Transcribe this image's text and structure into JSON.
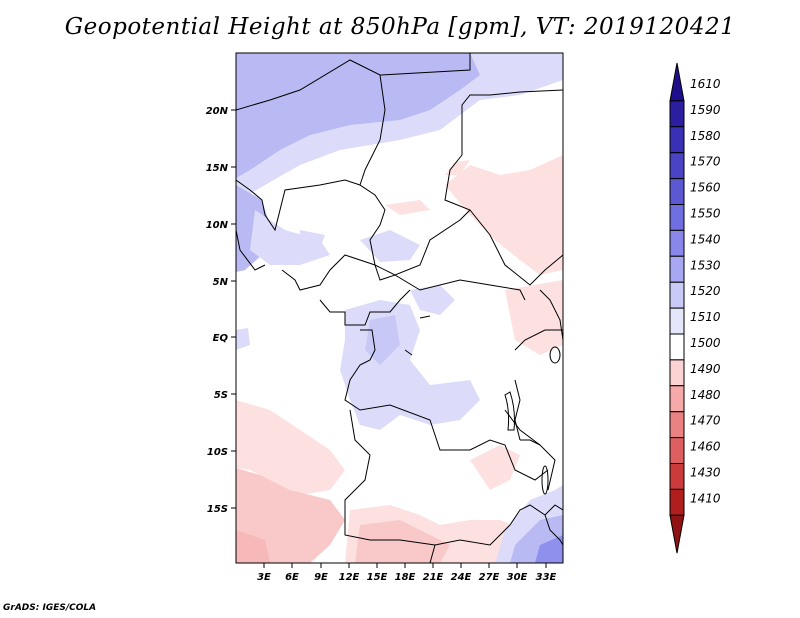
{
  "title": "Geopotential Height at 850hPa [gpm], VT: 2019120421",
  "credit": "GrADS: IGES/COLA",
  "map": {
    "region": "Central Africa",
    "lat_labels": [
      "20N",
      "15N",
      "10N",
      "5N",
      "EQ",
      "5S",
      "10S",
      "15S"
    ],
    "lon_labels": [
      "3E",
      "6E",
      "9E",
      "12E",
      "15E",
      "18E",
      "21E",
      "24E",
      "27E",
      "30E",
      "33E"
    ]
  },
  "colorbar": {
    "labels": [
      "1610",
      "1590",
      "1580",
      "1570",
      "1560",
      "1550",
      "1540",
      "1530",
      "1520",
      "1510",
      "1500",
      "1490",
      "1480",
      "1470",
      "1460",
      "1430",
      "1410"
    ],
    "colors": [
      "#1e0e8c",
      "#2b1fa0",
      "#3a30b5",
      "#4a44c4",
      "#5b58d2",
      "#6f6ee0",
      "#8988ea",
      "#a8a8f2",
      "#cacaf7",
      "#e6e6fb",
      "#ffffff",
      "#fbd3d3",
      "#f5a9a9",
      "#ea8282",
      "#dd5f5f",
      "#cc3b3b",
      "#b01e1e",
      "#901212"
    ]
  }
}
